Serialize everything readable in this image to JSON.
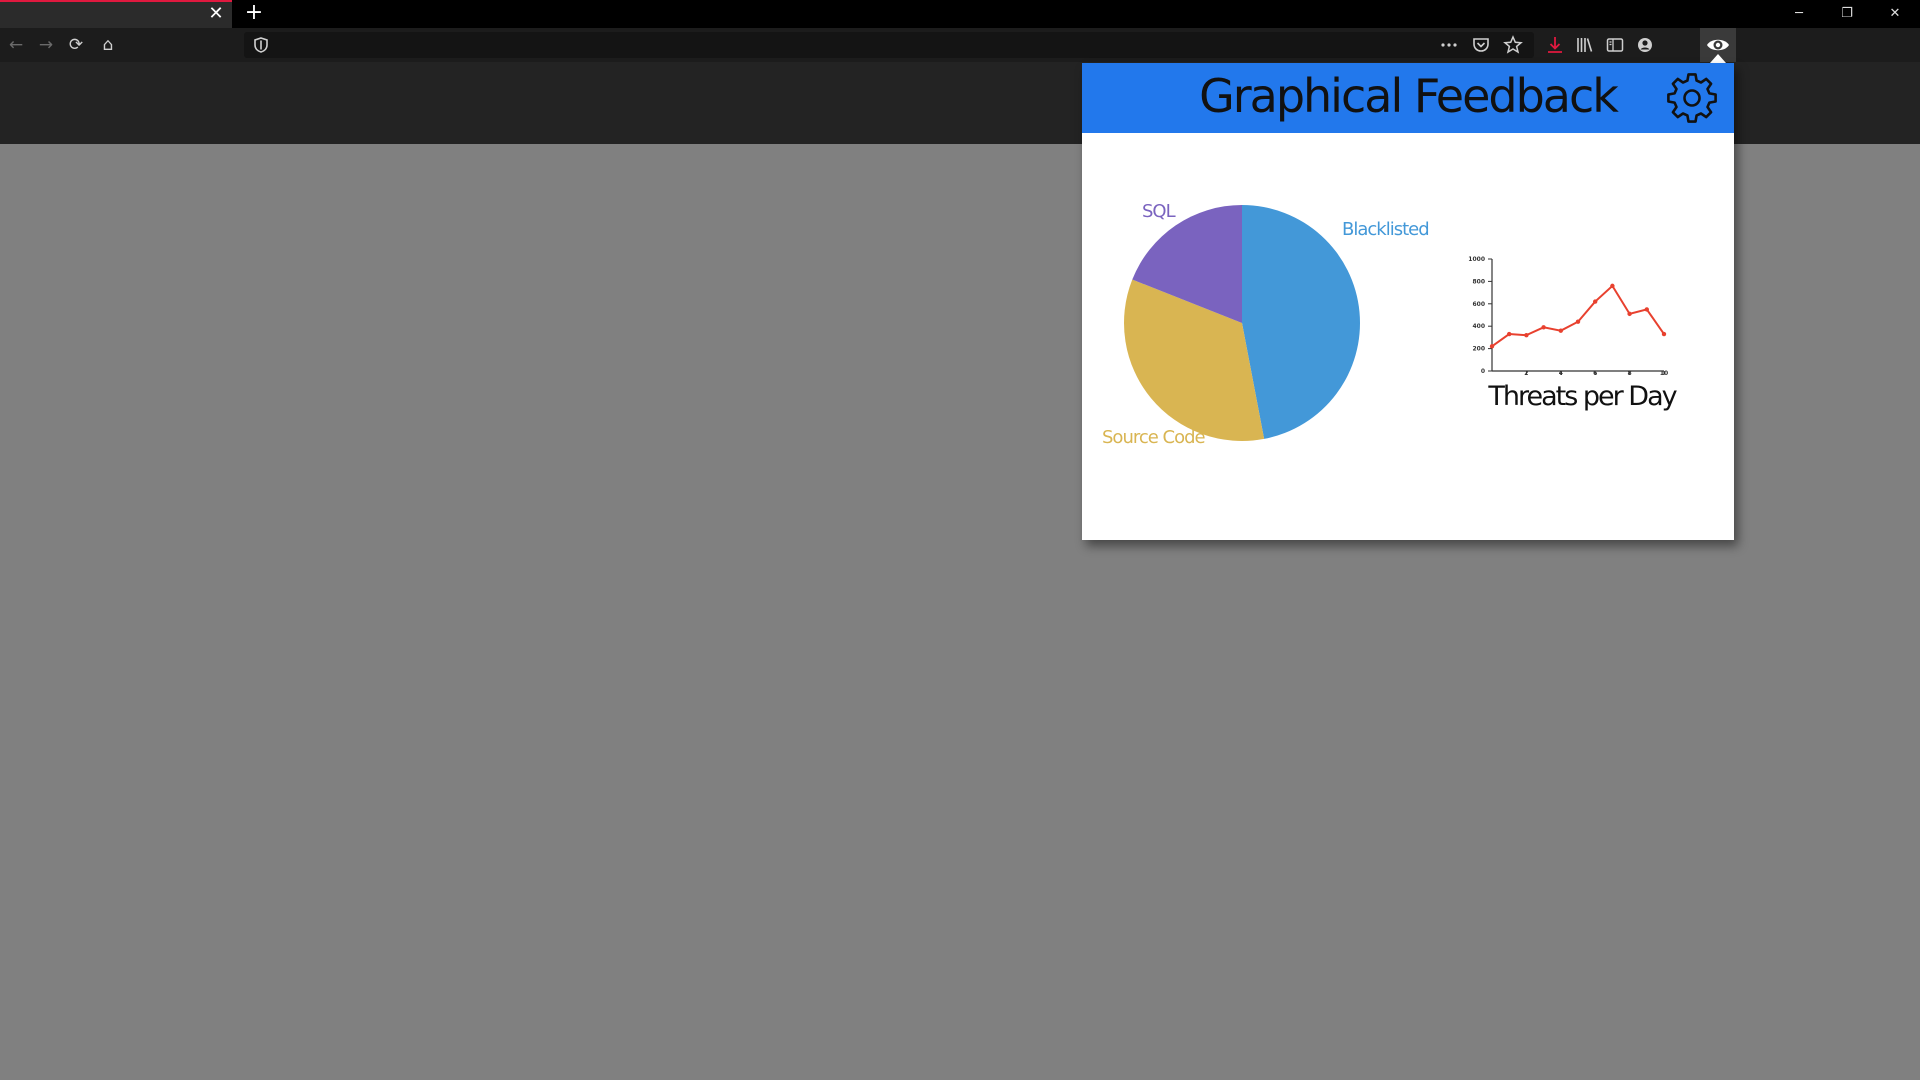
{
  "browser": {
    "tab_close": "✕",
    "new_tab": "+",
    "window": {
      "minimize": "─",
      "restore": "❐",
      "close": "✕"
    },
    "nav": {
      "back": "←",
      "forward": "→",
      "reload": "⟳",
      "home": "⌂"
    },
    "url_actions": [
      "more-icon",
      "pocket-icon",
      "star-icon"
    ],
    "toolbar_icons": [
      "download-icon",
      "library-icon",
      "sidebar-icon",
      "account-icon"
    ],
    "right_icons": [
      "overflow-icon",
      "menu-icon",
      "settings-icon",
      "history-icon"
    ],
    "colors": {
      "tab_accent": "#e0193f",
      "download_accent": "#e0193f"
    }
  },
  "popup": {
    "title": "Graphical Feedback",
    "header_color": "#2278ec",
    "settings_icon": "gear-icon"
  },
  "chart_data": [
    {
      "type": "pie",
      "slices": [
        {
          "label": "Blacklisted",
          "value": 47,
          "color": "#4398d8"
        },
        {
          "label": "Source Code",
          "value": 34,
          "color": "#d9b552"
        },
        {
          "label": "SQL",
          "value": 19,
          "color": "#7a63bf"
        }
      ]
    },
    {
      "type": "line",
      "title": "Threats per Day",
      "x": [
        0,
        1,
        2,
        3,
        4,
        5,
        6,
        7,
        8,
        9,
        10
      ],
      "series": [
        {
          "values": [
            220,
            330,
            320,
            390,
            360,
            440,
            620,
            760,
            510,
            550,
            330
          ],
          "color": "#e8412f"
        }
      ],
      "ylim": [
        0,
        1000
      ],
      "yticks": [
        "0",
        "200",
        "400",
        "600",
        "800",
        "1000"
      ],
      "xlim": [
        0,
        10
      ],
      "xticks": [
        "2",
        "4",
        "6",
        "8",
        "10"
      ],
      "grid": false
    }
  ]
}
